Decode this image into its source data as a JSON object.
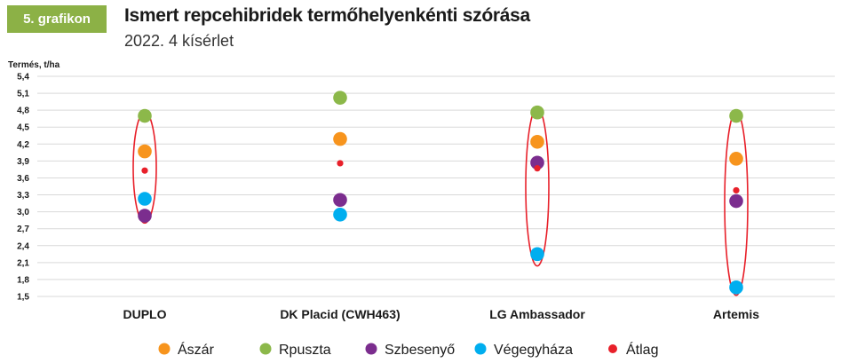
{
  "badge": "5. grafikon",
  "title": "Ismert repcehibridek termőhelyenkénti szórása",
  "subtitle": "2022. 4 kísérlet",
  "chart_data": {
    "type": "scatter",
    "ylabel": "Termés, t/ha",
    "ylim": [
      1.5,
      5.4
    ],
    "yticks": [
      "1,5",
      "1,8",
      "2,1",
      "2,4",
      "2,7",
      "3,0",
      "3,3",
      "3,6",
      "3,9",
      "4,2",
      "4,5",
      "4,8",
      "5,1",
      "5,4"
    ],
    "grid": true,
    "categories": [
      "DUPLO",
      "DK Placid (CWH463)",
      "LG Ambassador",
      "Artemis"
    ],
    "series": [
      {
        "name": "Ászár",
        "color": "#f7941d",
        "values": [
          4.07,
          4.29,
          4.24,
          3.94
        ]
      },
      {
        "name": "Rpuszta",
        "color": "#8cb84a",
        "values": [
          4.7,
          5.02,
          4.76,
          4.7
        ]
      },
      {
        "name": "Szbesenyő",
        "color": "#7b2d8e",
        "values": [
          2.93,
          3.21,
          3.87,
          3.19
        ]
      },
      {
        "name": "Végegyháza",
        "color": "#00aeef",
        "values": [
          3.23,
          2.95,
          2.25,
          1.66
        ]
      },
      {
        "name": "Átlag",
        "color": "#e8202a",
        "values": [
          3.73,
          3.86,
          3.77,
          3.38
        ]
      }
    ],
    "ellipses": [
      {
        "category": "DUPLO",
        "range": [
          2.8,
          4.77
        ]
      },
      {
        "category": "LG Ambassador",
        "range": [
          2.04,
          4.84
        ]
      },
      {
        "category": "Artemis",
        "range": [
          1.52,
          4.78
        ]
      }
    ],
    "legend": "bottom",
    "ellipse_color": "#e8202a"
  }
}
